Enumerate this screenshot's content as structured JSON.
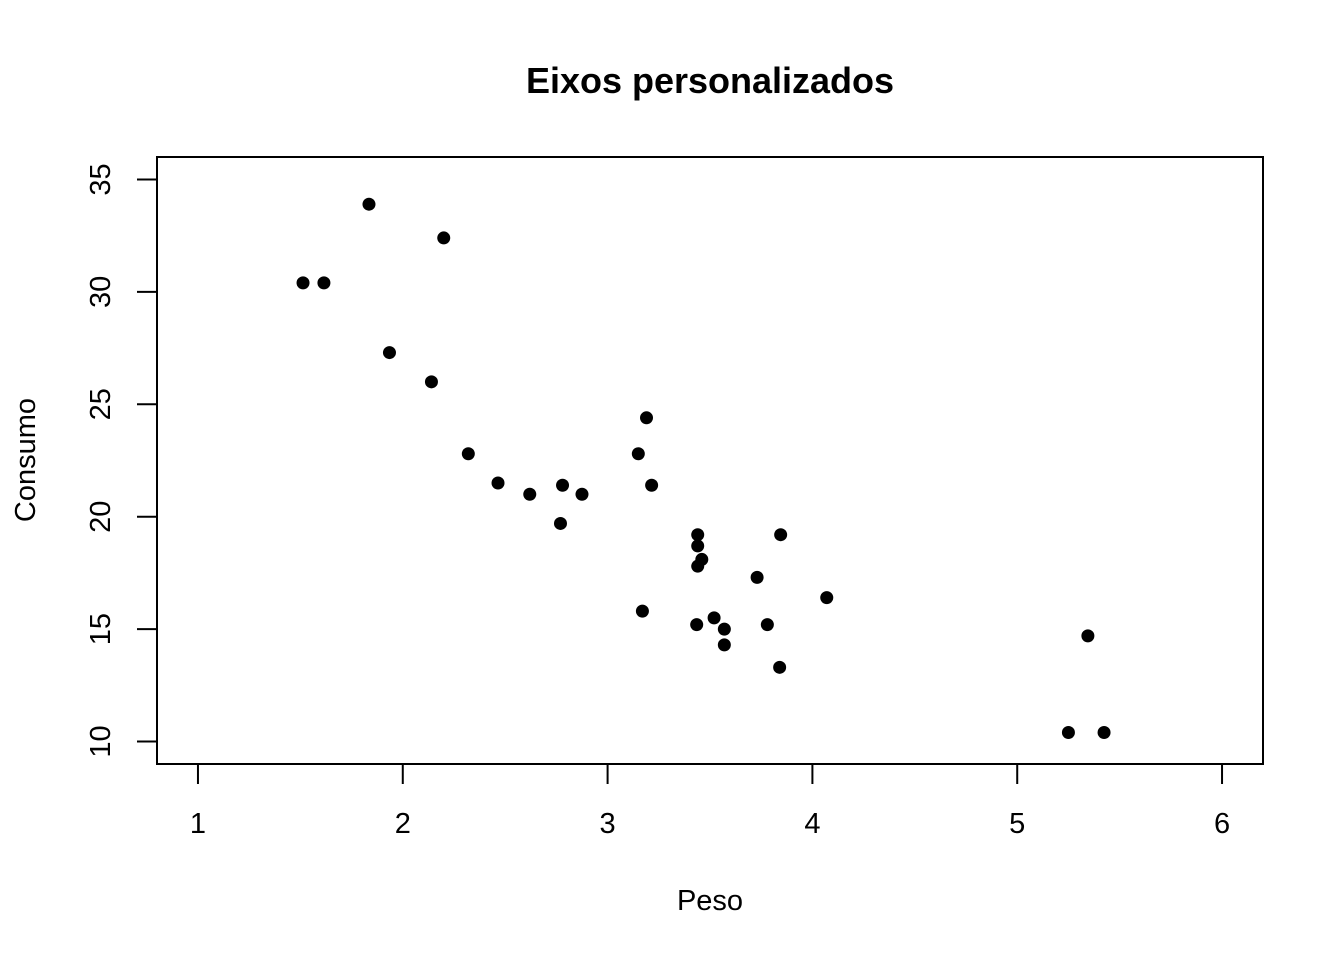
{
  "chart_data": {
    "type": "scatter",
    "title": "Eixos personalizados",
    "xlabel": "Peso",
    "ylabel": "Consumo",
    "xlim": [
      0.8,
      6.2
    ],
    "ylim": [
      9.0,
      36.0
    ],
    "x_ticks": [
      1,
      2,
      3,
      4,
      5,
      6
    ],
    "y_ticks": [
      10,
      15,
      20,
      25,
      30,
      35
    ],
    "grid": false,
    "legend": "none",
    "marker_color": "#000000",
    "points": [
      {
        "x": 2.62,
        "y": 21.0
      },
      {
        "x": 2.875,
        "y": 21.0
      },
      {
        "x": 2.32,
        "y": 22.8
      },
      {
        "x": 3.215,
        "y": 21.4
      },
      {
        "x": 3.44,
        "y": 18.7
      },
      {
        "x": 3.46,
        "y": 18.1
      },
      {
        "x": 3.57,
        "y": 14.3
      },
      {
        "x": 3.19,
        "y": 24.4
      },
      {
        "x": 3.15,
        "y": 22.8
      },
      {
        "x": 3.44,
        "y": 19.2
      },
      {
        "x": 3.44,
        "y": 17.8
      },
      {
        "x": 4.07,
        "y": 16.4
      },
      {
        "x": 3.73,
        "y": 17.3
      },
      {
        "x": 3.78,
        "y": 15.2
      },
      {
        "x": 5.25,
        "y": 10.4
      },
      {
        "x": 5.424,
        "y": 10.4
      },
      {
        "x": 5.345,
        "y": 14.7
      },
      {
        "x": 2.2,
        "y": 32.4
      },
      {
        "x": 1.615,
        "y": 30.4
      },
      {
        "x": 1.835,
        "y": 33.9
      },
      {
        "x": 2.465,
        "y": 21.5
      },
      {
        "x": 3.52,
        "y": 15.5
      },
      {
        "x": 3.435,
        "y": 15.2
      },
      {
        "x": 3.84,
        "y": 13.3
      },
      {
        "x": 3.845,
        "y": 19.2
      },
      {
        "x": 1.935,
        "y": 27.3
      },
      {
        "x": 2.14,
        "y": 26.0
      },
      {
        "x": 1.513,
        "y": 30.4
      },
      {
        "x": 3.17,
        "y": 15.8
      },
      {
        "x": 2.77,
        "y": 19.7
      },
      {
        "x": 3.57,
        "y": 15.0
      },
      {
        "x": 2.78,
        "y": 21.4
      }
    ]
  }
}
